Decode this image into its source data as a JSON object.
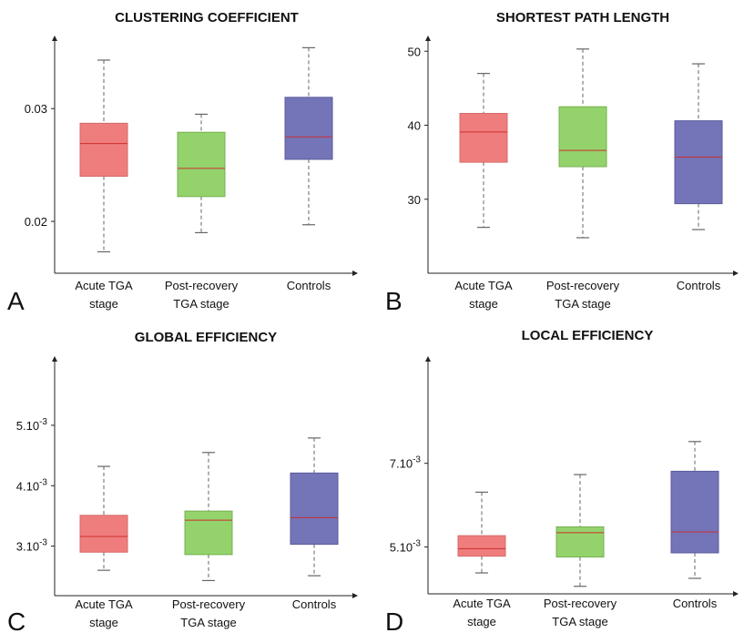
{
  "chart_data": [
    {
      "type": "box",
      "panel": "A",
      "title": "CLUSTERING COEFFICIENT",
      "yticks": [
        {
          "value": 0.02,
          "label": "0.02"
        },
        {
          "value": 0.03,
          "label": "0.03"
        }
      ],
      "ylim": [
        0.0154,
        0.0364
      ],
      "categories": [
        "Acute TGA|stage",
        "Post-recovery|TGA stage",
        "Controls"
      ],
      "boxes": [
        {
          "min": 0.0173,
          "q1": 0.024,
          "median": 0.0269,
          "q3": 0.0287,
          "max": 0.0343,
          "color": "#f07d7d",
          "stroke": "#d46a6a"
        },
        {
          "min": 0.019,
          "q1": 0.0222,
          "median": 0.0247,
          "q3": 0.0279,
          "max": 0.0295,
          "color": "#94d36c",
          "stroke": "#75b050"
        },
        {
          "min": 0.0197,
          "q1": 0.0255,
          "median": 0.0275,
          "q3": 0.031,
          "max": 0.0354,
          "color": "#7474b8",
          "stroke": "#5a5a9c"
        }
      ]
    },
    {
      "type": "box",
      "panel": "B",
      "title": "SHORTEST PATH LENGTH",
      "yticks": [
        {
          "value": 30,
          "label": "30"
        },
        {
          "value": 40,
          "label": "40"
        },
        {
          "value": 50,
          "label": "50"
        }
      ],
      "ylim": [
        20,
        52
      ],
      "categories": [
        "Acute TGA|stage",
        "Post-recovery|TGA stage",
        "Controls"
      ],
      "boxes": [
        {
          "min": 26.2,
          "q1": 35.0,
          "median": 39.1,
          "q3": 41.6,
          "max": 47.0,
          "color": "#f07d7d",
          "stroke": "#d46a6a"
        },
        {
          "min": 24.8,
          "q1": 34.4,
          "median": 36.6,
          "q3": 42.5,
          "max": 50.3,
          "color": "#94d36c",
          "stroke": "#75b050"
        },
        {
          "min": 25.9,
          "q1": 29.4,
          "median": 35.7,
          "q3": 40.6,
          "max": 48.3,
          "color": "#7474b8",
          "stroke": "#5a5a9c"
        }
      ]
    },
    {
      "type": "box",
      "panel": "C",
      "title": "GLOBAL EFFICIENCY",
      "yticks": [
        {
          "value": 0.0031,
          "label": "3.10",
          "exp": "-3"
        },
        {
          "value": 0.0041,
          "label": "4.10",
          "exp": "-3"
        },
        {
          "value": 0.0051,
          "label": "5.10",
          "exp": "-3"
        }
      ],
      "ylim": [
        0.00228,
        0.00623
      ],
      "categories": [
        "Acute TGA|stage",
        "Post-recovery|TGA stage",
        "Controls"
      ],
      "boxes": [
        {
          "min": 0.0027,
          "q1": 0.003,
          "median": 0.00326,
          "q3": 0.00361,
          "max": 0.00442,
          "color": "#f07d7d",
          "stroke": "#d46a6a"
        },
        {
          "min": 0.00253,
          "q1": 0.00296,
          "median": 0.00353,
          "q3": 0.00368,
          "max": 0.00465,
          "color": "#94d36c",
          "stroke": "#75b050"
        },
        {
          "min": 0.00261,
          "q1": 0.00313,
          "median": 0.00357,
          "q3": 0.00431,
          "max": 0.00489,
          "color": "#7474b8",
          "stroke": "#5a5a9c"
        }
      ]
    },
    {
      "type": "box",
      "panel": "D",
      "title": "LOCAL EFFICIENCY",
      "yticks": [
        {
          "value": 0.0051,
          "label": "5.10",
          "exp": "-3"
        },
        {
          "value": 0.0071,
          "label": "7.10",
          "exp": "-3"
        }
      ],
      "ylim": [
        0.00398,
        0.00964
      ],
      "categories": [
        "Acute TGA|stage",
        "Post-recovery|TGA stage",
        "Controls"
      ],
      "boxes": [
        {
          "min": 0.00448,
          "q1": 0.00488,
          "median": 0.00506,
          "q3": 0.00537,
          "max": 0.00641,
          "color": "#f07d7d",
          "stroke": "#d46a6a"
        },
        {
          "min": 0.00416,
          "q1": 0.00486,
          "median": 0.00544,
          "q3": 0.00558,
          "max": 0.00683,
          "color": "#94d36c",
          "stroke": "#75b050"
        },
        {
          "min": 0.00435,
          "q1": 0.00496,
          "median": 0.00546,
          "q3": 0.00691,
          "max": 0.00762,
          "color": "#7474b8",
          "stroke": "#5a5a9c"
        }
      ]
    }
  ]
}
